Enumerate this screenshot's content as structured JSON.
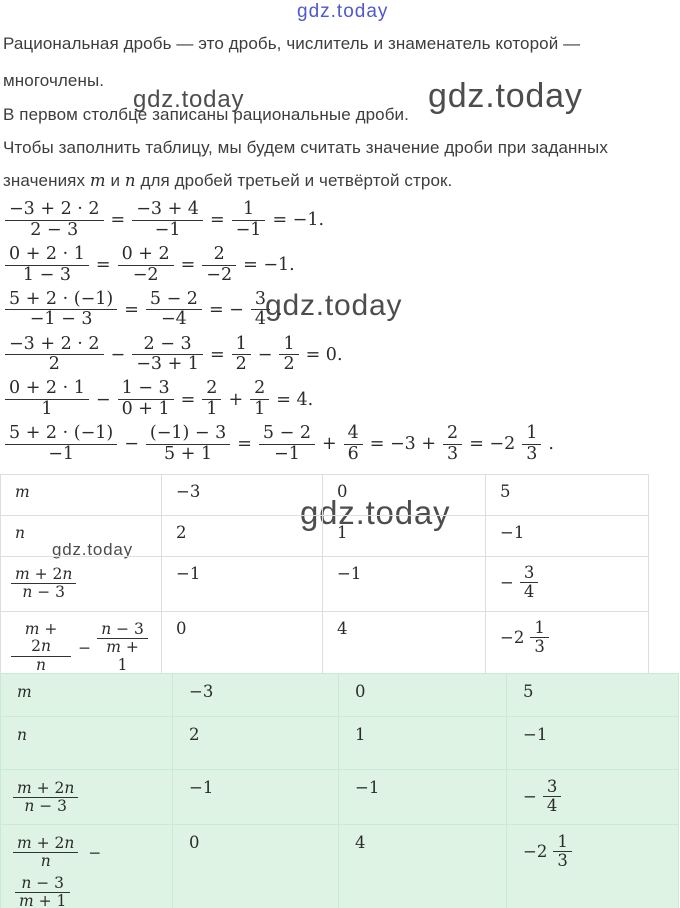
{
  "watermark": {
    "text": "gdz.today",
    "blue_color": "#4f58d0",
    "gray_color": "#4d4d4d"
  },
  "paragraphs": {
    "line1": "Рациональная дробь — это дробь, числитель и знаменатель которой —",
    "line2": "многочлены.",
    "line3": "В первом столбце записаны рациональные дроби.",
    "line4": "Чтобы заполнить таблицу, мы будем считать значение дроби при заданных",
    "line5_prefix": "значениях ",
    "line5_var1": "m",
    "line5_mid": " и ",
    "line5_var2": "n",
    "line5_suffix": " для дробей третьей и четвёртой строк."
  },
  "equations": [
    [
      {
        "t": "frac",
        "n": "−3 + 2 · 2",
        "d": "2 − 3"
      },
      {
        "t": "op",
        "v": "="
      },
      {
        "t": "frac",
        "n": "−3 + 4",
        "d": "−1"
      },
      {
        "t": "op",
        "v": "="
      },
      {
        "t": "frac",
        "n": "1",
        "d": "−1"
      },
      {
        "t": "op",
        "v": "= −1."
      }
    ],
    [
      {
        "t": "frac",
        "n": "0 + 2 · 1",
        "d": "1 − 3"
      },
      {
        "t": "op",
        "v": "="
      },
      {
        "t": "frac",
        "n": "0 + 2",
        "d": "−2"
      },
      {
        "t": "op",
        "v": "="
      },
      {
        "t": "frac",
        "n": "2",
        "d": "−2"
      },
      {
        "t": "op",
        "v": "= −1."
      }
    ],
    [
      {
        "t": "frac",
        "n": "5 + 2 · (−1)",
        "d": "−1 − 3"
      },
      {
        "t": "op",
        "v": "="
      },
      {
        "t": "frac",
        "n": "5 − 2",
        "d": "−4"
      },
      {
        "t": "op",
        "v": "= −"
      },
      {
        "t": "frac",
        "n": "3",
        "d": "4"
      },
      {
        "t": "op",
        "v": "."
      }
    ],
    [
      {
        "t": "frac",
        "n": "−3 + 2 · 2",
        "d": "2"
      },
      {
        "t": "op",
        "v": "−"
      },
      {
        "t": "frac",
        "n": "2 − 3",
        "d": "−3 + 1"
      },
      {
        "t": "op",
        "v": "="
      },
      {
        "t": "frac",
        "n": "1",
        "d": "2"
      },
      {
        "t": "op",
        "v": "−"
      },
      {
        "t": "frac",
        "n": "1",
        "d": "2"
      },
      {
        "t": "op",
        "v": "= 0."
      }
    ],
    [
      {
        "t": "frac",
        "n": "0 + 2 · 1",
        "d": "1"
      },
      {
        "t": "op",
        "v": "−"
      },
      {
        "t": "frac",
        "n": "1 − 3",
        "d": "0 + 1"
      },
      {
        "t": "op",
        "v": "="
      },
      {
        "t": "frac",
        "n": "2",
        "d": "1"
      },
      {
        "t": "op",
        "v": "+"
      },
      {
        "t": "frac",
        "n": "2",
        "d": "1"
      },
      {
        "t": "op",
        "v": "= 4."
      }
    ],
    [
      {
        "t": "frac",
        "n": "5 + 2 · (−1)",
        "d": "−1"
      },
      {
        "t": "op",
        "v": "−"
      },
      {
        "t": "frac",
        "n": "(−1) − 3",
        "d": "5 + 1"
      },
      {
        "t": "op",
        "v": "="
      },
      {
        "t": "frac",
        "n": "5 − 2",
        "d": "−1"
      },
      {
        "t": "op",
        "v": "+"
      },
      {
        "t": "frac",
        "n": "4",
        "d": "6"
      },
      {
        "t": "op",
        "v": "= −3 +"
      },
      {
        "t": "frac",
        "n": "2",
        "d": "3"
      },
      {
        "t": "op",
        "v": "= −2"
      },
      {
        "t": "frac",
        "n": "1",
        "d": "3"
      },
      {
        "t": "op",
        "v": "."
      }
    ]
  ],
  "table": {
    "rows": [
      {
        "label": [
          {
            "t": "op",
            "v": "m"
          }
        ],
        "cells": [
          [
            {
              "t": "op",
              "v": "−3"
            }
          ],
          [
            {
              "t": "op",
              "v": "0"
            }
          ],
          [
            {
              "t": "op",
              "v": "5"
            }
          ]
        ]
      },
      {
        "label": [
          {
            "t": "op",
            "v": "n"
          }
        ],
        "cells": [
          [
            {
              "t": "op",
              "v": "2"
            }
          ],
          [
            {
              "t": "op",
              "v": "1"
            }
          ],
          [
            {
              "t": "op",
              "v": "−1"
            }
          ]
        ]
      },
      {
        "label": [
          {
            "t": "frac",
            "n": "m + 2n",
            "d": "n − 3"
          }
        ],
        "cells": [
          [
            {
              "t": "op",
              "v": "−1"
            }
          ],
          [
            {
              "t": "op",
              "v": "−1"
            }
          ],
          [
            {
              "t": "op",
              "v": "−"
            },
            {
              "t": "frac",
              "n": "3",
              "d": "4"
            }
          ]
        ]
      },
      {
        "label": [
          {
            "t": "frac",
            "n": "m + 2n",
            "d": "n"
          },
          {
            "t": "op",
            "v": "−"
          },
          {
            "t": "frac",
            "n": "n − 3",
            "d": "m + 1"
          }
        ],
        "cells": [
          [
            {
              "t": "op",
              "v": "0"
            }
          ],
          [
            {
              "t": "op",
              "v": "4"
            }
          ],
          [
            {
              "t": "op",
              "v": "−2"
            },
            {
              "t": "frac",
              "n": "1",
              "d": "3"
            }
          ]
        ]
      }
    ]
  }
}
